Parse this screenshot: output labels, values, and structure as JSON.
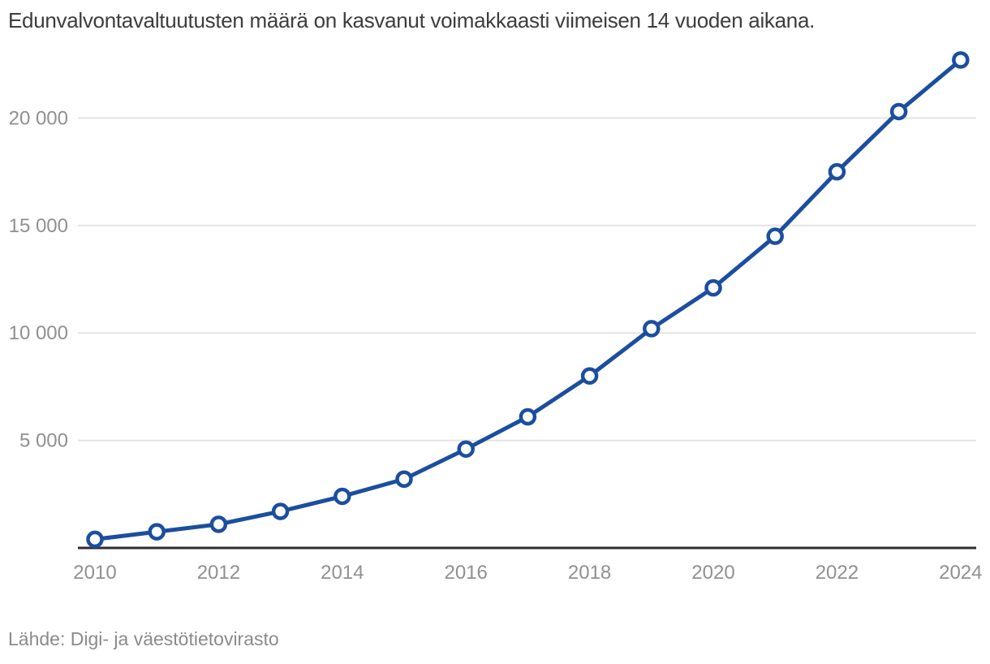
{
  "page": {
    "title": "Edunvalvontavaltuutusten määrä on kasvanut voimakkaasti viimeisen 14 vuoden aikana.",
    "source": "Lähde: Digi- ja väestötietovirasto"
  },
  "colors": {
    "line": "#1b4e9e",
    "marker_fill": "#ffffff",
    "grid": "#e4e4e4",
    "axis": "#2e2e2e",
    "tick_label": "#909090",
    "title_text": "#3d3d3d",
    "source_text": "#8b8b8b",
    "background": "#ffffff"
  },
  "chart_data": {
    "type": "line",
    "title": "Edunvalvontavaltuutusten määrä on kasvanut voimakkaasti viimeisen 14 vuoden aikana.",
    "series_name": "Edunvalvontavaltuutusten määrä",
    "x": [
      2010,
      2011,
      2012,
      2013,
      2014,
      2015,
      2016,
      2017,
      2018,
      2019,
      2020,
      2021,
      2022,
      2023,
      2024
    ],
    "values": [
      400,
      750,
      1100,
      1700,
      2400,
      3200,
      4600,
      6100,
      8000,
      10200,
      12100,
      14500,
      17500,
      20300,
      22700
    ],
    "xlabel": "",
    "ylabel": "",
    "ylim": [
      0,
      23400
    ],
    "yticks": [
      5000,
      10000,
      15000,
      20000
    ],
    "ytick_labels": [
      "5 000",
      "10 000",
      "15 000",
      "20 000"
    ],
    "xticks": [
      2010,
      2012,
      2014,
      2016,
      2018,
      2020,
      2022,
      2024
    ],
    "grid": true,
    "legend": false,
    "marker": "open-circle",
    "source": "Lähde: Digi- ja väestötietovirasto"
  }
}
